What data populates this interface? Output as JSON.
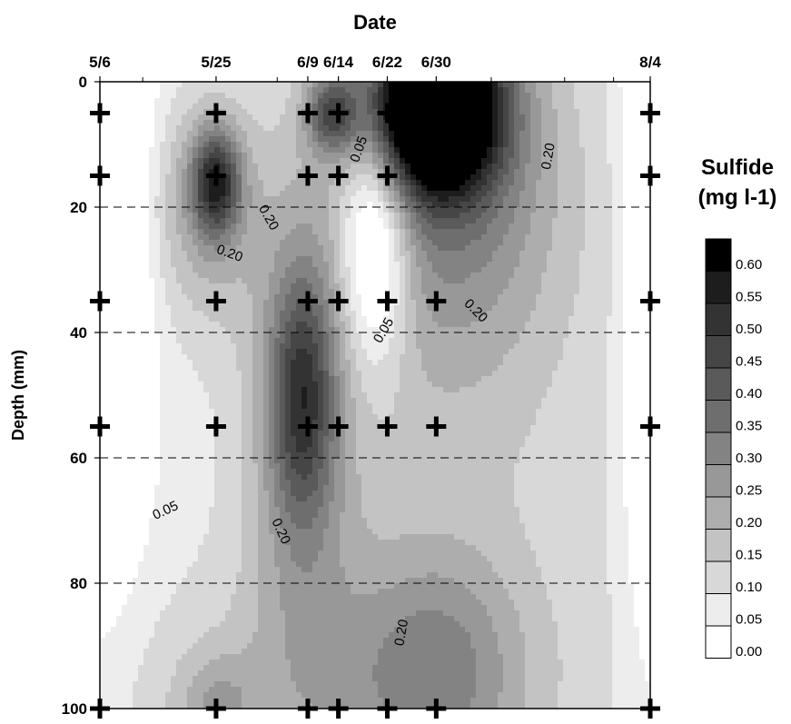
{
  "chart_data": {
    "type": "heatmap",
    "x_title": "Date",
    "y_title": "Depth (mm)",
    "x_ticks": [
      {
        "label": "5/6",
        "day": 0
      },
      {
        "label": "5/25",
        "day": 19
      },
      {
        "label": "6/9",
        "day": 34
      },
      {
        "label": "6/14",
        "day": 39
      },
      {
        "label": "6/22",
        "day": 47
      },
      {
        "label": "6/30",
        "day": 55
      },
      {
        "label": "8/4",
        "day": 90
      }
    ],
    "y_ticks": [
      0,
      20,
      40,
      60,
      80,
      100
    ],
    "ylim": [
      0,
      100
    ],
    "y_reversed": true,
    "grid": {
      "dashed_horizontal_at": [
        20,
        40,
        60,
        80
      ]
    },
    "sample_dates": [
      "5/6",
      "5/25",
      "6/9",
      "6/14",
      "6/22",
      "6/30",
      "8/4"
    ],
    "sample_depths": [
      5,
      15,
      35,
      55,
      100
    ],
    "legend": {
      "title_line1": "Sulfide",
      "title_line2": "(mg l-1)",
      "placement": "right",
      "levels": [
        "0.60",
        "0.55",
        "0.50",
        "0.45",
        "0.40",
        "0.35",
        "0.30",
        "0.25",
        "0.20",
        "0.15",
        "0.10",
        "0.05",
        "0.00"
      ],
      "colors": [
        "#000000",
        "#1d1d1d",
        "#333333",
        "#464646",
        "#5a5a5a",
        "#6e6e6e",
        "#838383",
        "#989898",
        "#adadad",
        "#c3c3c3",
        "#d8d8d8",
        "#ededed",
        "#ffffff"
      ]
    },
    "contour_labels": [
      {
        "text": "0.20",
        "day": 27,
        "depth": 22,
        "angle": 60
      },
      {
        "text": "0.20",
        "day": 21,
        "depth": 28,
        "angle": 20
      },
      {
        "text": "0.05",
        "day": 43,
        "depth": 11,
        "angle": -70
      },
      {
        "text": "0.05",
        "day": 47,
        "depth": 40,
        "angle": -60
      },
      {
        "text": "0.20",
        "day": 74,
        "depth": 12,
        "angle": -80
      },
      {
        "text": "0.20",
        "day": 61,
        "depth": 37,
        "angle": 45
      },
      {
        "text": "0.05",
        "day": 11,
        "depth": 69,
        "angle": -25
      },
      {
        "text": "0.20",
        "day": 29,
        "depth": 72,
        "angle": 65
      },
      {
        "text": "0.20",
        "day": 50,
        "depth": 88,
        "angle": -80
      }
    ],
    "features": [
      {
        "day": 19,
        "depth": 16,
        "value": 0.37,
        "sx": 2.8,
        "sy": 6
      },
      {
        "day": 17,
        "depth": 20,
        "value": 0.16,
        "sx": 7,
        "sy": 13
      },
      {
        "day": 33,
        "depth": 50,
        "value": 0.3,
        "sx": 3.8,
        "sy": 14
      },
      {
        "day": 33,
        "depth": 60,
        "value": 0.14,
        "sx": 6.5,
        "sy": 28
      },
      {
        "day": 38,
        "depth": 5,
        "value": 0.3,
        "sx": 3,
        "sy": 4.5
      },
      {
        "day": 55,
        "depth": 4,
        "value": 0.78,
        "sx": 7,
        "sy": 9
      },
      {
        "day": 57,
        "depth": 12,
        "value": 0.25,
        "sx": 13,
        "sy": 22
      },
      {
        "day": 56,
        "depth": 50,
        "value": 0.09,
        "sx": 26,
        "sy": 40
      },
      {
        "day": 55,
        "depth": 94,
        "value": 0.17,
        "sx": 10,
        "sy": 14
      },
      {
        "day": 37,
        "depth": 100,
        "value": 0.1,
        "sx": 30,
        "sy": 16
      },
      {
        "day": 19,
        "depth": 100,
        "value": 0.12,
        "sx": 4.5,
        "sy": 6
      },
      {
        "day": 45,
        "depth": 25,
        "value": -0.3,
        "sx": 4,
        "sy": 14
      },
      {
        "day": 0,
        "depth": 20,
        "value": -0.3,
        "sx": 5,
        "sy": 35
      },
      {
        "day": 90,
        "depth": 25,
        "value": -0.2,
        "sx": 3,
        "sy": 40
      }
    ]
  }
}
